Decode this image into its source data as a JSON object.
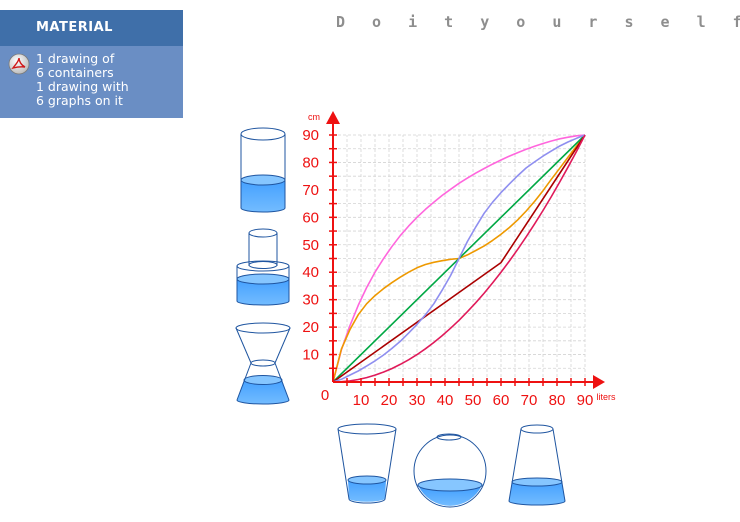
{
  "material": {
    "title": "MATERIAL",
    "items": [
      {
        "icon": "pdf-icon",
        "lines": [
          "1 drawing of",
          "6 containers",
          "1 drawing with",
          "6 graphs on it"
        ]
      }
    ]
  },
  "title": "D o  i t  y o u r s e l f",
  "chart_data": {
    "type": "line",
    "title": "",
    "xlabel": "liters",
    "ylabel": "cm",
    "xlim": [
      0,
      90
    ],
    "ylim": [
      0,
      90
    ],
    "x_ticks": [
      10,
      20,
      30,
      40,
      50,
      60,
      70,
      80,
      90
    ],
    "y_ticks": [
      10,
      20,
      30,
      40,
      50,
      60,
      70,
      80,
      90
    ],
    "origin_label": "0",
    "grid": true,
    "series": [
      {
        "color": "#ff66dd",
        "x": [
          0,
          3,
          6,
          9,
          12,
          15,
          18,
          21,
          24,
          27,
          30,
          33,
          36,
          39,
          42,
          45,
          48,
          51,
          54,
          57,
          60,
          63,
          66,
          69,
          72,
          75,
          78,
          81,
          84,
          87,
          90
        ],
        "y": [
          0,
          11.7,
          20.4,
          27.9,
          34.4,
          40,
          44.9,
          49.3,
          53.3,
          56.8,
          60,
          62.9,
          65.5,
          68,
          70.2,
          72.4,
          74.3,
          76.1,
          77.8,
          79.4,
          80.9,
          82.3,
          83.6,
          84.8,
          85.9,
          86.9,
          87.8,
          88.6,
          89.2,
          89.7,
          90
        ]
      },
      {
        "color": "#ee9900",
        "x": [
          0,
          3,
          6,
          9,
          12,
          15,
          18,
          21,
          24,
          27,
          30,
          33,
          36,
          39,
          42,
          45,
          48,
          51,
          54,
          57,
          60,
          63,
          66,
          69,
          72,
          75,
          78,
          81,
          84,
          87,
          90
        ],
        "y": [
          0,
          12,
          19,
          24.5,
          28.5,
          31.5,
          34,
          36.2,
          38.2,
          40,
          41.6,
          42.8,
          43.6,
          44.2,
          44.7,
          45,
          46.3,
          47.9,
          49.6,
          51.6,
          53.8,
          56.3,
          59.1,
          62.3,
          65.8,
          69.7,
          73.9,
          77.9,
          82,
          86,
          90
        ]
      },
      {
        "color": "#00a844",
        "x": [
          0,
          90
        ],
        "y": [
          0,
          90
        ]
      },
      {
        "color": "#aa0000",
        "x": [
          0,
          60,
          90
        ],
        "y": [
          0,
          43.5,
          90
        ]
      },
      {
        "color": "#8f8ff0",
        "x": [
          0,
          3,
          6,
          9,
          12,
          15,
          18,
          21,
          24,
          27,
          30,
          33,
          36,
          39,
          42,
          45,
          48,
          51,
          54,
          57,
          60,
          63,
          66,
          69,
          72,
          75,
          78,
          81,
          84,
          87,
          90
        ],
        "y": [
          0,
          1,
          2.5,
          4,
          5.8,
          7.7,
          9.8,
          12.2,
          14.8,
          17.8,
          21,
          24.5,
          28.5,
          33.5,
          38.8,
          45,
          51.2,
          56.5,
          61.5,
          65.5,
          69,
          72.2,
          75.2,
          78,
          80.2,
          82.3,
          84.2,
          86,
          87.5,
          88.8,
          90
        ]
      },
      {
        "color": "#e01a5a",
        "x": [
          0,
          3,
          6,
          9,
          12,
          15,
          18,
          21,
          24,
          27,
          30,
          33,
          36,
          39,
          42,
          45,
          48,
          51,
          54,
          57,
          60,
          63,
          66,
          69,
          72,
          75,
          78,
          81,
          84,
          87,
          90
        ],
        "y": [
          0,
          0.1,
          0.4,
          0.9,
          1.6,
          2.5,
          3.6,
          4.9,
          6.4,
          8.1,
          10,
          12.1,
          14.4,
          16.9,
          19.6,
          22.5,
          25.6,
          28.9,
          32.4,
          36.1,
          40,
          44.1,
          48.4,
          52.9,
          57.6,
          62.5,
          67.6,
          72.9,
          78.4,
          84.1,
          90
        ]
      }
    ]
  },
  "colors": {
    "axis": "#ee1111",
    "water": "#5aabff",
    "outline": "#1f55a0",
    "grid": "#cccccc"
  }
}
